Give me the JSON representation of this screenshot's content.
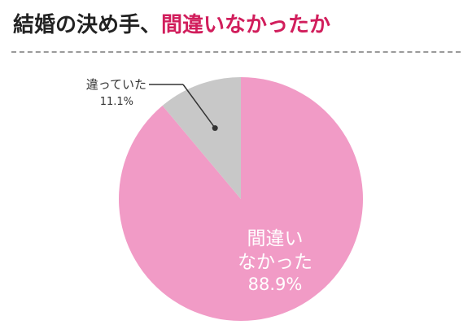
{
  "header": {
    "title_part1": "結婚の決め手、",
    "title_part2": "間違いなかったか"
  },
  "colors": {
    "title_accent": "#d11e5c",
    "slice_main": "#f19bc6",
    "slice_minor": "#c8c8c8"
  },
  "chart_data": {
    "type": "pie",
    "start": "12 o'clock, clockwise",
    "slices": [
      {
        "label_lines": [
          "間違い",
          "なかった"
        ],
        "value": 88.9,
        "value_label": "88.9%",
        "color": "#f19bc6"
      },
      {
        "label_lines": [
          "違っていた"
        ],
        "value": 11.1,
        "value_label": "11.1%",
        "color": "#c8c8c8"
      }
    ]
  }
}
